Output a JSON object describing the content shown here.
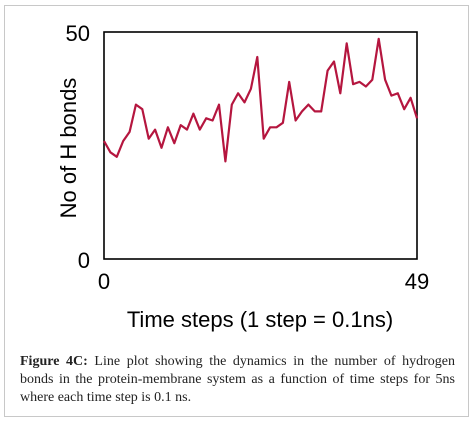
{
  "chart_data": {
    "type": "line",
    "xlabel": "Time steps (1 step = 0.1ns)",
    "ylabel": "No of H bonds",
    "xlim": [
      0,
      49
    ],
    "ylim": [
      0,
      50
    ],
    "xticks": [
      "0",
      "49"
    ],
    "yticks": [
      "0",
      "50"
    ],
    "grid": false,
    "line_color": "#b5163f",
    "series": [
      {
        "x": [
          0,
          1,
          2,
          3,
          4,
          5,
          6,
          7,
          8,
          9,
          10,
          11,
          12,
          13,
          14,
          15,
          16,
          17,
          18,
          19,
          20,
          21,
          22,
          23,
          24,
          25,
          26,
          27,
          28,
          29,
          30,
          31,
          32,
          33,
          34,
          35,
          36,
          37,
          38,
          39,
          40,
          41,
          42,
          43,
          44,
          45,
          46,
          47,
          48,
          49
        ],
        "values": [
          26,
          23.5,
          22.5,
          26,
          28,
          34,
          33,
          26.5,
          28.5,
          24.5,
          29,
          25.5,
          29.5,
          28.5,
          32,
          28.5,
          31,
          30.5,
          34,
          21.5,
          34,
          36.5,
          34.5,
          37.5,
          44.5,
          26.5,
          29,
          29,
          30,
          39,
          30.5,
          32.5,
          34,
          32.5,
          32.5,
          41.5,
          43.5,
          36.5,
          47.5,
          38.5,
          39,
          38,
          39.5,
          48.5,
          39.5,
          36,
          36.5,
          33,
          35.5,
          31
        ]
      }
    ]
  },
  "caption": {
    "label": "Figure 4C:",
    "text": " Line plot showing the dynamics in the number of hydrogen bonds in the protein-membrane system as a function of time steps for 5ns where each time step is 0.1 ns."
  }
}
